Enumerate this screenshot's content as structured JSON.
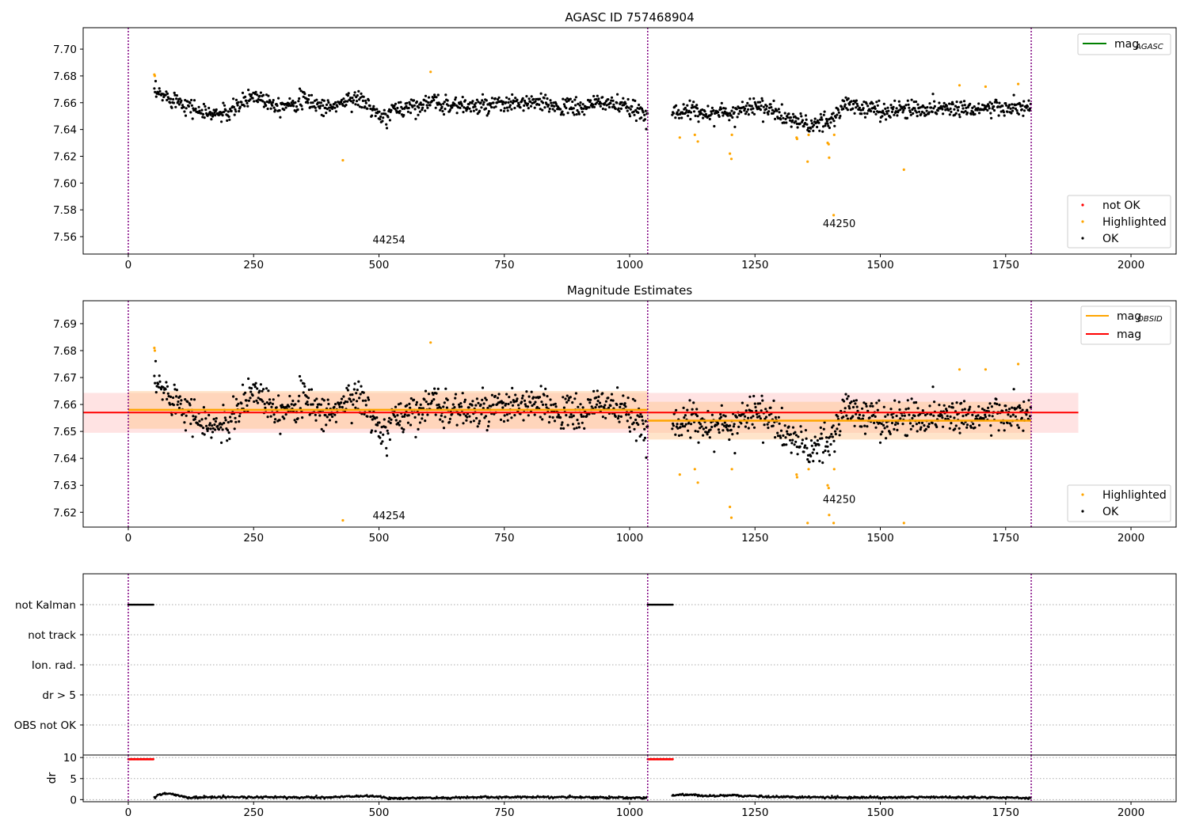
{
  "chart_data": [
    {
      "type": "scatter",
      "title": "AGASC ID 757468904",
      "xlim": [
        -90,
        2090
      ],
      "ylim": [
        7.547,
        7.716
      ],
      "xticks": [
        0,
        250,
        500,
        750,
        1000,
        1250,
        1500,
        1750,
        2000
      ],
      "yticks": [
        7.56,
        7.58,
        7.6,
        7.62,
        7.64,
        7.66,
        7.68,
        7.7
      ],
      "ytick_decimals": 2,
      "obs_boundaries": [
        0,
        1036,
        1801
      ],
      "obs_labels": [
        {
          "text": "44254",
          "x": 520,
          "y": 7.555
        },
        {
          "text": "44250",
          "x": 1418,
          "y": 7.567
        }
      ],
      "legend_top": {
        "position": "upper right",
        "entries": [
          {
            "label": "mag",
            "sub": "AGASC",
            "color": "#008000",
            "kind": "line"
          }
        ]
      },
      "legend_bottom": {
        "position": "lower right",
        "entries": [
          {
            "label": "not OK",
            "color": "#ff0000",
            "kind": "dot"
          },
          {
            "label": "Highlighted",
            "color": "#ffa500",
            "kind": "dot"
          },
          {
            "label": "OK",
            "color": "#000000",
            "kind": "dot"
          }
        ]
      },
      "series": [
        {
          "name": "OK",
          "color": "#000000",
          "segments": [
            {
              "x": [
                52,
                1036
              ],
              "noise": 0.006,
              "points": [
                [
                  52,
                  7.667
                ],
                [
                  100,
                  7.662
                ],
                [
                  150,
                  7.652
                ],
                [
                  200,
                  7.652
                ],
                [
                  250,
                  7.666
                ],
                [
                  300,
                  7.658
                ],
                [
                  350,
                  7.662
                ],
                [
                  400,
                  7.656
                ],
                [
                  450,
                  7.664
                ],
                [
                  480,
                  7.658
                ],
                [
                  505,
                  7.647
                ],
                [
                  530,
                  7.655
                ],
                [
                  600,
                  7.66
                ],
                [
                  700,
                  7.657
                ],
                [
                  800,
                  7.66
                ],
                [
                  900,
                  7.656
                ],
                [
                  950,
                  7.661
                ],
                [
                  1036,
                  7.651
                ]
              ]
            },
            {
              "x": [
                1085,
                1801
              ],
              "noise": 0.006,
              "points": [
                [
                  1085,
                  7.654
                ],
                [
                  1150,
                  7.653
                ],
                [
                  1200,
                  7.652
                ],
                [
                  1250,
                  7.659
                ],
                [
                  1300,
                  7.651
                ],
                [
                  1340,
                  7.645
                ],
                [
                  1370,
                  7.643
                ],
                [
                  1400,
                  7.646
                ],
                [
                  1430,
                  7.659
                ],
                [
                  1500,
                  7.654
                ],
                [
                  1600,
                  7.656
                ],
                [
                  1700,
                  7.656
                ],
                [
                  1801,
                  7.656
                ]
              ]
            }
          ]
        },
        {
          "name": "Highlighted",
          "color": "#ffa500",
          "points": [
            [
              52,
              7.681
            ],
            [
              53,
              7.68
            ],
            [
              428,
              7.617
            ],
            [
              603,
              7.683
            ],
            [
              1100,
              7.634
            ],
            [
              1130,
              7.636
            ],
            [
              1136,
              7.631
            ],
            [
              1200,
              7.622
            ],
            [
              1203,
              7.618
            ],
            [
              1204,
              7.636
            ],
            [
              1333,
              7.634
            ],
            [
              1334,
              7.633
            ],
            [
              1355,
              7.616
            ],
            [
              1357,
              7.636
            ],
            [
              1395,
              7.63
            ],
            [
              1397,
              7.629
            ],
            [
              1398,
              7.619
            ],
            [
              1407,
              7.576
            ],
            [
              1408,
              7.636
            ],
            [
              1547,
              7.61
            ],
            [
              1658,
              7.673
            ],
            [
              1710,
              7.672
            ],
            [
              1775,
              7.674
            ]
          ]
        }
      ]
    },
    {
      "type": "scatter",
      "title": "Magnitude Estimates",
      "xlim": [
        -90,
        2090
      ],
      "ylim": [
        7.6145,
        7.6985
      ],
      "xticks": [
        0,
        250,
        500,
        750,
        1000,
        1250,
        1500,
        1750,
        2000
      ],
      "yticks": [
        7.62,
        7.63,
        7.64,
        7.65,
        7.66,
        7.67,
        7.68,
        7.69
      ],
      "ytick_decimals": 2,
      "obs_boundaries": [
        0,
        1036,
        1801
      ],
      "obs_labels": [
        {
          "text": "44254",
          "x": 520,
          "y": 7.6175
        },
        {
          "text": "44250",
          "x": 1418,
          "y": 7.6235
        }
      ],
      "mag": {
        "value": 7.657,
        "band": [
          7.6495,
          7.6643
        ],
        "x": [
          -90,
          1895
        ],
        "color": "#ff0000",
        "band_color": "#ffcccc"
      },
      "mag_obsid": [
        {
          "x": [
            0,
            1036
          ],
          "value": 7.658,
          "band": [
            7.651,
            7.665
          ]
        },
        {
          "x": [
            1036,
            1801
          ],
          "value": 7.654,
          "band": [
            7.647,
            7.661
          ]
        }
      ],
      "mag_obsid_color": "#ffa500",
      "legend_top": {
        "position": "upper right",
        "entries": [
          {
            "label": "mag",
            "sub": "OBSID",
            "color": "#ffa500",
            "kind": "line"
          },
          {
            "label": "mag",
            "sub": "",
            "color": "#ff0000",
            "kind": "line"
          }
        ]
      },
      "legend_bottom": {
        "position": "lower right",
        "entries": [
          {
            "label": "Highlighted",
            "color": "#ffa500",
            "kind": "dot"
          },
          {
            "label": "OK",
            "color": "#000000",
            "kind": "dot"
          }
        ]
      },
      "series": [
        {
          "name": "OK",
          "color": "#000000",
          "segments": [
            {
              "x": [
                52,
                1036
              ],
              "noise": 0.006,
              "points": [
                [
                  52,
                  7.667
                ],
                [
                  100,
                  7.662
                ],
                [
                  150,
                  7.652
                ],
                [
                  200,
                  7.652
                ],
                [
                  250,
                  7.666
                ],
                [
                  300,
                  7.658
                ],
                [
                  350,
                  7.662
                ],
                [
                  400,
                  7.656
                ],
                [
                  450,
                  7.664
                ],
                [
                  480,
                  7.658
                ],
                [
                  505,
                  7.647
                ],
                [
                  530,
                  7.655
                ],
                [
                  600,
                  7.66
                ],
                [
                  700,
                  7.657
                ],
                [
                  800,
                  7.66
                ],
                [
                  900,
                  7.656
                ],
                [
                  950,
                  7.661
                ],
                [
                  1036,
                  7.651
                ]
              ]
            },
            {
              "x": [
                1085,
                1801
              ],
              "noise": 0.006,
              "points": [
                [
                  1085,
                  7.654
                ],
                [
                  1150,
                  7.653
                ],
                [
                  1200,
                  7.652
                ],
                [
                  1250,
                  7.659
                ],
                [
                  1300,
                  7.651
                ],
                [
                  1340,
                  7.645
                ],
                [
                  1370,
                  7.643
                ],
                [
                  1400,
                  7.646
                ],
                [
                  1430,
                  7.659
                ],
                [
                  1500,
                  7.654
                ],
                [
                  1600,
                  7.656
                ],
                [
                  1700,
                  7.656
                ],
                [
                  1801,
                  7.656
                ]
              ]
            }
          ]
        },
        {
          "name": "Highlighted",
          "color": "#ffa500",
          "points": [
            [
              52,
              7.681
            ],
            [
              53,
              7.68
            ],
            [
              428,
              7.617
            ],
            [
              603,
              7.683
            ],
            [
              1100,
              7.634
            ],
            [
              1130,
              7.636
            ],
            [
              1136,
              7.631
            ],
            [
              1200,
              7.622
            ],
            [
              1203,
              7.618
            ],
            [
              1204,
              7.636
            ],
            [
              1333,
              7.634
            ],
            [
              1334,
              7.633
            ],
            [
              1355,
              7.616
            ],
            [
              1357,
              7.636
            ],
            [
              1395,
              7.63
            ],
            [
              1397,
              7.629
            ],
            [
              1398,
              7.619
            ],
            [
              1407,
              7.616
            ],
            [
              1408,
              7.636
            ],
            [
              1547,
              7.616
            ],
            [
              1658,
              7.673
            ],
            [
              1710,
              7.673
            ],
            [
              1775,
              7.675
            ]
          ]
        }
      ]
    },
    {
      "type": "scatter",
      "title": "",
      "xlim": [
        -90,
        2090
      ],
      "categories": [
        "not Kalman",
        "not track",
        "Ion. rad.",
        "dr > 5",
        "OBS not OK"
      ],
      "flag_runs": [
        {
          "category": "not Kalman",
          "x": [
            0,
            50
          ],
          "color": "#000000"
        },
        {
          "category": "not Kalman",
          "x": [
            1036,
            1086
          ],
          "color": "#000000"
        }
      ],
      "obs_boundaries": [
        0,
        1036,
        1801
      ]
    },
    {
      "type": "line",
      "title": "",
      "ylabel": "dr",
      "xlim": [
        -90,
        2090
      ],
      "ylim": [
        -0.5,
        10.6
      ],
      "xticks": [
        0,
        250,
        500,
        750,
        1000,
        1250,
        1500,
        1750,
        2000
      ],
      "yticks": [
        0,
        5,
        10
      ],
      "ytick_decimals": 0,
      "obs_boundaries": [
        0,
        1036,
        1801
      ],
      "threshold_runs": [
        {
          "x": [
            0,
            50
          ],
          "value": 9.6,
          "color": "#ff0000"
        },
        {
          "x": [
            1036,
            1086
          ],
          "value": 9.6,
          "color": "#ff0000"
        }
      ],
      "dr_segments": [
        {
          "x": [
            52,
            1036
          ],
          "points": [
            [
              52,
              0.3
            ],
            [
              60,
              1.2
            ],
            [
              80,
              1.5
            ],
            [
              100,
              1.0
            ],
            [
              120,
              0.5
            ],
            [
              200,
              0.6
            ],
            [
              400,
              0.5
            ],
            [
              450,
              0.8
            ],
            [
              500,
              0.8
            ],
            [
              520,
              0.3
            ],
            [
              750,
              0.6
            ],
            [
              900,
              0.6
            ],
            [
              1036,
              0.4
            ]
          ]
        },
        {
          "x": [
            1085,
            1801
          ],
          "points": [
            [
              1085,
              1.0
            ],
            [
              1120,
              1.2
            ],
            [
              1160,
              0.8
            ],
            [
              1200,
              1.0
            ],
            [
              1300,
              0.6
            ],
            [
              1500,
              0.5
            ],
            [
              1600,
              0.6
            ],
            [
              1801,
              0.4
            ]
          ]
        }
      ]
    }
  ]
}
